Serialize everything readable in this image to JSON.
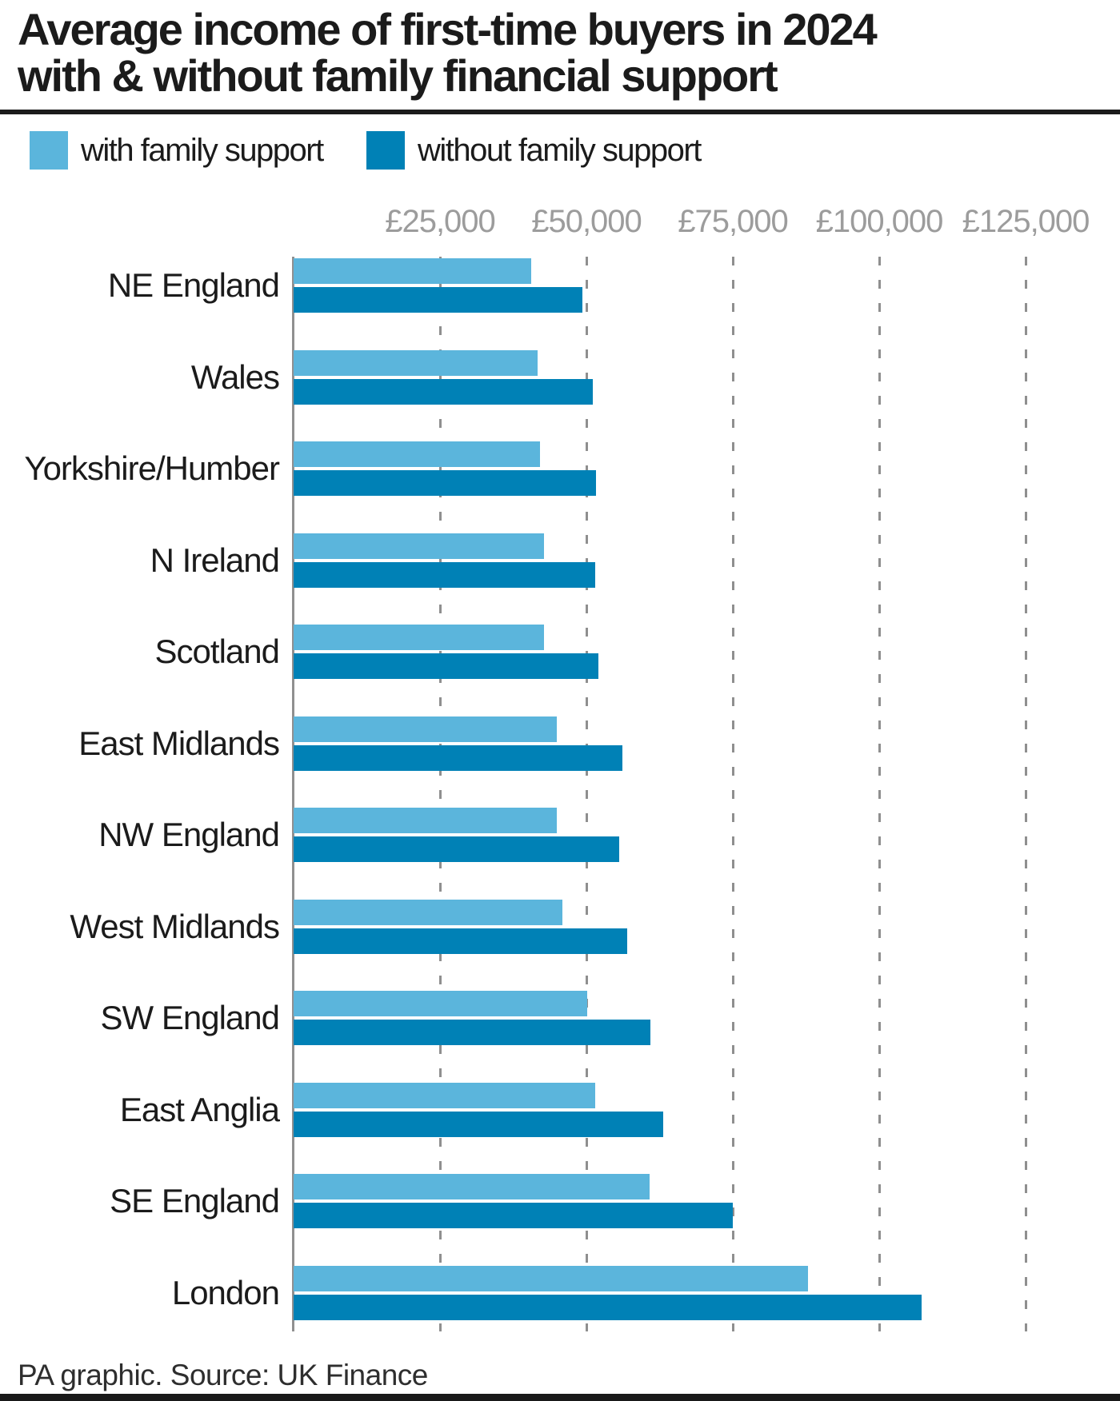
{
  "header": {
    "title_lines": [
      "Average income of first-time buyers in 2024",
      "with & without family financial support"
    ]
  },
  "legend": {
    "items": [
      {
        "label": "with family support",
        "color": "#5bb5dc"
      },
      {
        "label": "without family support",
        "color": "#0081b6"
      }
    ]
  },
  "footer": {
    "credit": "PA graphic. Source: UK Finance"
  },
  "colors": {
    "bar_with_support": "#5bb5dc",
    "bar_without_support": "#0081b6",
    "gridline": "#8f8f8f",
    "axis_tick_label": "#9c9c9c",
    "title_text": "#1b1b1b",
    "rule_and_bottom_bar": "#191919"
  },
  "chart_data": {
    "type": "bar",
    "orientation": "horizontal",
    "title": "Average income of first-time buyers in 2024 with & without family financial support",
    "categories": [
      "NE England",
      "Wales",
      "Yorkshire/Humber",
      "N Ireland",
      "Scotland",
      "East Midlands",
      "NW England",
      "West Midlands",
      "SW England",
      "East Anglia",
      "SE England",
      "London"
    ],
    "series": [
      {
        "name": "with family support",
        "values": [
          40600,
          41700,
          42100,
          42700,
          42800,
          44900,
          44900,
          45900,
          50200,
          51500,
          60800,
          87800
        ]
      },
      {
        "name": "without family support",
        "values": [
          49300,
          51100,
          51700,
          51500,
          52000,
          56200,
          55600,
          57000,
          60900,
          63100,
          75000,
          107200
        ]
      }
    ],
    "x_axis": {
      "currency": "GBP",
      "tick_values": [
        25000,
        50000,
        75000,
        100000,
        125000
      ],
      "tick_labels": [
        "£25,000",
        "£50,000",
        "£75,000",
        "£100,000",
        "£125,000"
      ],
      "range": [
        0,
        127500
      ]
    },
    "ylabel": "",
    "xlabel": "",
    "grid": "dashed-vertical",
    "legend_position": "top-left"
  }
}
